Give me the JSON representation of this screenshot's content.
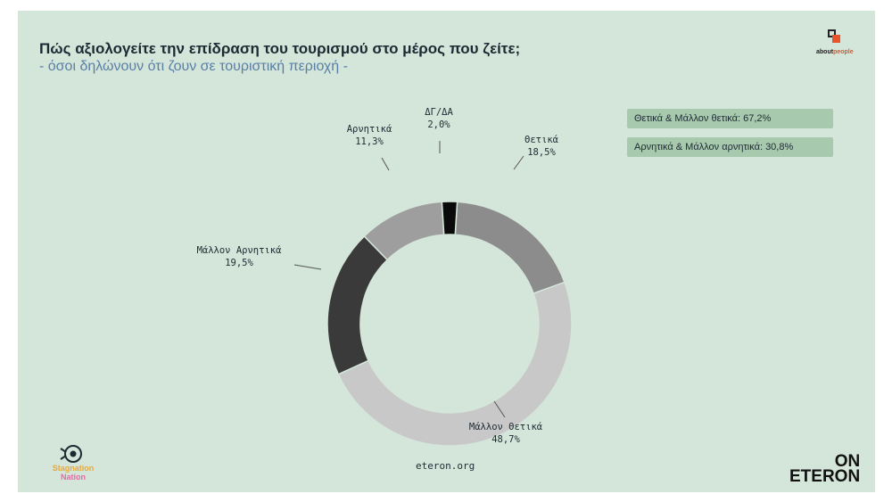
{
  "header": {
    "title": "Πώς αξιολογείτε την επίδραση του τουρισμού στο μέρος που ζείτε;",
    "subtitle": "- όσοι δηλώνουν ότι ζουν σε τουριστική περιοχή -"
  },
  "logos": {
    "aboutpeople_a": "about",
    "aboutpeople_b": "people",
    "on": "ON",
    "eteron": "ETERON",
    "stagnation_a": "Stagnation",
    "stagnation_b": "Nation"
  },
  "footer": {
    "url": "eteron.org"
  },
  "summary": [
    {
      "label": "Θετικά & Μάλλον θετικά: 67,2%"
    },
    {
      "label": "Αρνητικά & Μάλλον αρνητικά: 30,8%"
    }
  ],
  "colors": {
    "background": "#d4e5d9",
    "summary_box": "#a7c9ad",
    "subtitle": "#5a7fa6",
    "brand_accent": "#e8532b"
  },
  "chart_data": {
    "type": "pie",
    "style": "donut",
    "slices": [
      {
        "name": "Θετικά",
        "value": 18.5,
        "value_label": "18,5%",
        "color": "#8c8c8c"
      },
      {
        "name": "Μάλλον Θετικά",
        "value": 48.7,
        "value_label": "48,7%",
        "color": "#c8c8c8"
      },
      {
        "name": "Μάλλον Αρνητικά",
        "value": 19.5,
        "value_label": "19,5%",
        "color": "#3a3a3a"
      },
      {
        "name": "Αρνητικά",
        "value": 11.3,
        "value_label": "11,3%",
        "color": "#9e9e9e"
      },
      {
        "name": "ΔΓ/ΔΑ",
        "value": 2.0,
        "value_label": "2,0%",
        "color": "#0a0a0a"
      }
    ]
  }
}
